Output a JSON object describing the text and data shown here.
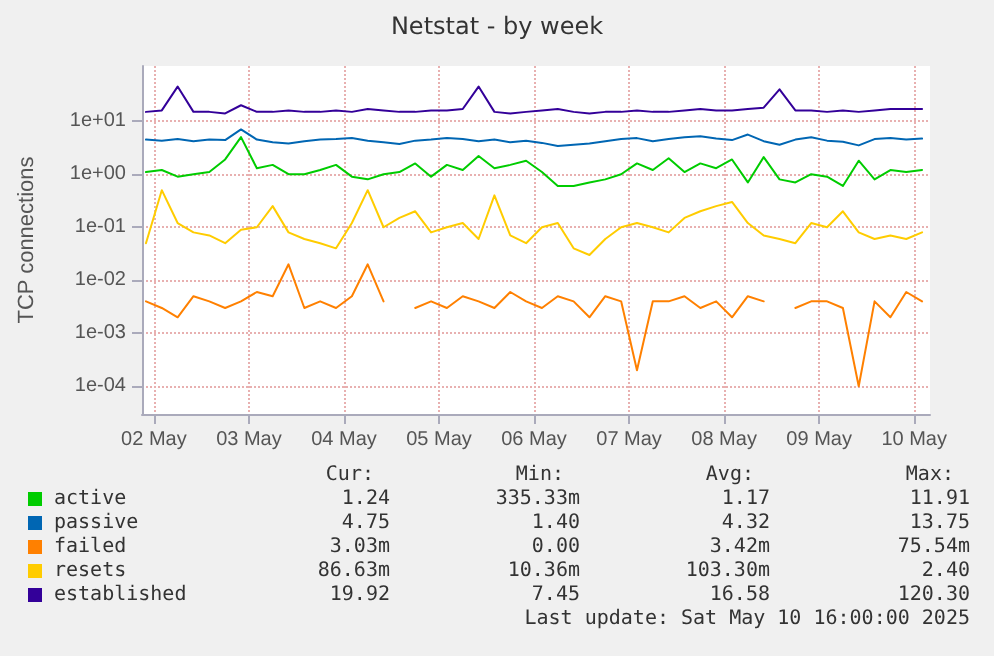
{
  "chart_data": {
    "type": "line",
    "title": "Netstat - by week",
    "ylabel": "TCP connections",
    "log": "y",
    "grid": true,
    "legend": "bottom",
    "marker": "none",
    "line_style": "solid",
    "xlim": [
      "2025-05-02T09:00",
      "2025-05-10T16:00"
    ],
    "xticks": [
      {
        "value": "2025-05-02T12:00",
        "label": "02 May"
      },
      {
        "value": "2025-05-03T12:00",
        "label": "03 May"
      },
      {
        "value": "2025-05-04T12:00",
        "label": "04 May"
      },
      {
        "value": "2025-05-05T12:00",
        "label": "05 May"
      },
      {
        "value": "2025-05-06T12:00",
        "label": "06 May"
      },
      {
        "value": "2025-05-07T12:00",
        "label": "07 May"
      },
      {
        "value": "2025-05-08T12:00",
        "label": "08 May"
      },
      {
        "value": "2025-05-09T12:00",
        "label": "09 May"
      },
      {
        "value": "2025-05-10T12:00",
        "label": "10 May"
      }
    ],
    "ylim": [
      3e-05,
      110
    ],
    "yticks": [
      {
        "value": 0.0001,
        "label": "1e-04"
      },
      {
        "value": 0.001,
        "label": "1e-03"
      },
      {
        "value": 0.01,
        "label": "1e-02"
      },
      {
        "value": 0.1,
        "label": "1e-01"
      },
      {
        "value": 1,
        "label": "1e+00"
      },
      {
        "value": 10,
        "label": "1e+01"
      }
    ],
    "x": [
      "2025-05-02T10:00",
      "2025-05-02T14:00",
      "2025-05-02T18:00",
      "2025-05-02T22:00",
      "2025-05-03T02:00",
      "2025-05-03T06:00",
      "2025-05-03T10:00",
      "2025-05-03T14:00",
      "2025-05-03T18:00",
      "2025-05-03T22:00",
      "2025-05-04T02:00",
      "2025-05-04T06:00",
      "2025-05-04T10:00",
      "2025-05-04T14:00",
      "2025-05-04T18:00",
      "2025-05-04T22:00",
      "2025-05-05T02:00",
      "2025-05-05T06:00",
      "2025-05-05T10:00",
      "2025-05-05T14:00",
      "2025-05-05T18:00",
      "2025-05-05T22:00",
      "2025-05-06T02:00",
      "2025-05-06T06:00",
      "2025-05-06T10:00",
      "2025-05-06T14:00",
      "2025-05-06T18:00",
      "2025-05-06T22:00",
      "2025-05-07T02:00",
      "2025-05-07T06:00",
      "2025-05-07T10:00",
      "2025-05-07T14:00",
      "2025-05-07T18:00",
      "2025-05-07T22:00",
      "2025-05-08T02:00",
      "2025-05-08T06:00",
      "2025-05-08T10:00",
      "2025-05-08T14:00",
      "2025-05-08T18:00",
      "2025-05-08T22:00",
      "2025-05-09T02:00",
      "2025-05-09T06:00",
      "2025-05-09T10:00",
      "2025-05-09T14:00",
      "2025-05-09T18:00",
      "2025-05-09T22:00",
      "2025-05-10T02:00",
      "2025-05-10T06:00",
      "2025-05-10T10:00",
      "2025-05-10T14:00"
    ],
    "series": [
      {
        "name": "active",
        "color": "#00cc00",
        "values": [
          1.1,
          1.2,
          0.9,
          1.0,
          1.1,
          1.9,
          5.0,
          1.3,
          1.5,
          1.0,
          1.0,
          1.2,
          1.5,
          0.9,
          0.8,
          1.0,
          1.1,
          1.6,
          0.9,
          1.5,
          1.2,
          2.2,
          1.3,
          1.5,
          1.8,
          1.1,
          0.6,
          0.6,
          0.7,
          0.8,
          1.0,
          1.6,
          1.2,
          2.0,
          1.1,
          1.6,
          1.3,
          1.9,
          0.7,
          2.1,
          0.8,
          0.7,
          1.0,
          0.9,
          0.6,
          1.8,
          0.8,
          1.2,
          1.1,
          1.2
        ]
      },
      {
        "name": "passive",
        "color": "#0066b3",
        "values": [
          4.5,
          4.3,
          4.6,
          4.2,
          4.5,
          4.4,
          7.0,
          4.5,
          4.0,
          3.8,
          4.2,
          4.5,
          4.6,
          4.8,
          4.3,
          4.0,
          3.7,
          4.3,
          4.5,
          4.8,
          4.6,
          4.2,
          4.5,
          4.0,
          4.3,
          3.9,
          3.4,
          3.6,
          3.8,
          4.2,
          4.6,
          4.8,
          4.2,
          4.6,
          5.0,
          5.2,
          4.7,
          4.4,
          5.6,
          4.2,
          3.6,
          4.5,
          5.0,
          4.3,
          4.1,
          3.5,
          4.6,
          4.8,
          4.5,
          4.7
        ]
      },
      {
        "name": "failed",
        "color": "#ff8000",
        "values": [
          0.004,
          0.003,
          0.002,
          0.005,
          0.004,
          0.003,
          0.004,
          0.006,
          0.005,
          0.02,
          0.003,
          0.004,
          0.003,
          0.005,
          0.02,
          0.004,
          null,
          0.003,
          0.004,
          0.003,
          0.005,
          0.004,
          0.003,
          0.006,
          0.004,
          0.003,
          0.005,
          0.004,
          0.002,
          0.005,
          0.004,
          0.0002,
          0.004,
          0.004,
          0.005,
          0.003,
          0.004,
          0.002,
          0.005,
          0.004,
          null,
          0.003,
          0.004,
          0.004,
          0.003,
          0.0001,
          0.004,
          0.002,
          0.006,
          0.004
        ]
      },
      {
        "name": "resets",
        "color": "#ffcc00",
        "values": [
          0.05,
          0.5,
          0.12,
          0.08,
          0.07,
          0.05,
          0.09,
          0.1,
          0.25,
          0.08,
          0.06,
          0.05,
          0.04,
          0.12,
          0.5,
          0.1,
          0.15,
          0.2,
          0.08,
          0.1,
          0.12,
          0.06,
          0.4,
          0.07,
          0.05,
          0.1,
          0.12,
          0.04,
          0.03,
          0.06,
          0.1,
          0.12,
          0.1,
          0.08,
          0.15,
          0.2,
          0.25,
          0.3,
          0.12,
          0.07,
          0.06,
          0.05,
          0.12,
          0.1,
          0.2,
          0.08,
          0.06,
          0.07,
          0.06,
          0.08
        ]
      },
      {
        "name": "established",
        "color": "#330099",
        "values": [
          15,
          16,
          45,
          15,
          15,
          14,
          20,
          15,
          15,
          16,
          15,
          15,
          16,
          15,
          17,
          16,
          15,
          15,
          16,
          16,
          17,
          45,
          15,
          14,
          15,
          16,
          17,
          15,
          14,
          15,
          15,
          16,
          15,
          15,
          16,
          17,
          16,
          16,
          17,
          18,
          40,
          16,
          16,
          15,
          16,
          15,
          16,
          17,
          17,
          17
        ]
      }
    ],
    "annotations": [
      "Cur:",
      "Min:",
      "Avg:",
      "Max:",
      "1.24",
      "335.33m",
      "1.17",
      "11.91",
      "4.75",
      "1.40",
      "4.32",
      "13.75",
      "3.03m",
      "0.00",
      "3.42m",
      "75.54m",
      "86.63m",
      "10.36m",
      "103.30m",
      "2.40",
      "19.92",
      "7.45",
      "16.58",
      "120.30",
      "Last update: Sat May 10 16:00:00 2025"
    ]
  }
}
